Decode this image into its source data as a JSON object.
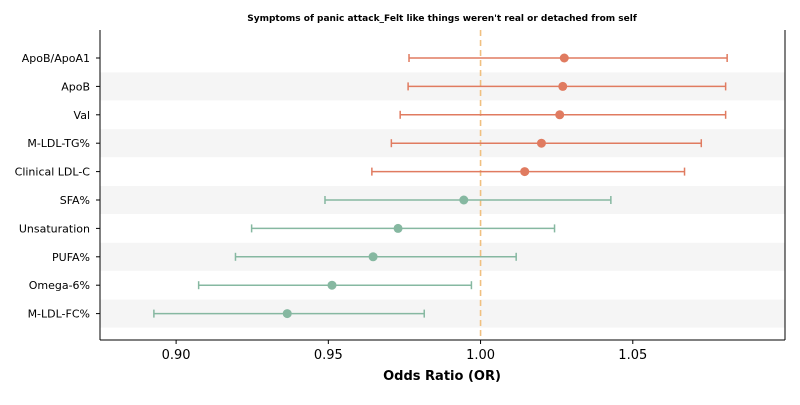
{
  "chart_data": {
    "type": "forest",
    "title": "Symptoms of panic attack_Felt like things weren't real or detached from self",
    "xlabel": "Odds Ratio (OR)",
    "xlim": [
      0.875,
      1.1
    ],
    "xticks": [
      0.9,
      0.95,
      1.0,
      1.05
    ],
    "xtick_labels": [
      "0.90",
      "0.95",
      "1.00",
      "1.05"
    ],
    "reference_line": 1.0,
    "row_striping": true,
    "colors": {
      "positive": "#e07b60",
      "negative": "#86b8a1",
      "reference": "#f0c080",
      "stripe": "#f5f5f5"
    },
    "rows": [
      {
        "label": "ApoB/ApoA1",
        "or": 1.0275,
        "lower": 0.9765,
        "upper": 1.081
      },
      {
        "label": "ApoB",
        "or": 1.027,
        "lower": 0.9762,
        "upper": 1.0805
      },
      {
        "label": "Val",
        "or": 1.026,
        "lower": 0.9736,
        "upper": 1.0805
      },
      {
        "label": "M-LDL-TG%",
        "or": 1.02,
        "lower": 0.9707,
        "upper": 1.0725
      },
      {
        "label": "Clinical LDL-C",
        "or": 1.0145,
        "lower": 0.9643,
        "upper": 1.067
      },
      {
        "label": "SFA%",
        "or": 0.9945,
        "lower": 0.9489,
        "upper": 1.0428
      },
      {
        "label": "Unsaturation",
        "or": 0.9729,
        "lower": 0.9248,
        "upper": 1.0243
      },
      {
        "label": "PUFA%",
        "or": 0.9647,
        "lower": 0.9195,
        "upper": 1.0117
      },
      {
        "label": "Omega-6%",
        "or": 0.9512,
        "lower": 0.9074,
        "upper": 0.997
      },
      {
        "label": "M-LDL-FC%",
        "or": 0.9365,
        "lower": 0.8927,
        "upper": 0.9815
      }
    ]
  }
}
